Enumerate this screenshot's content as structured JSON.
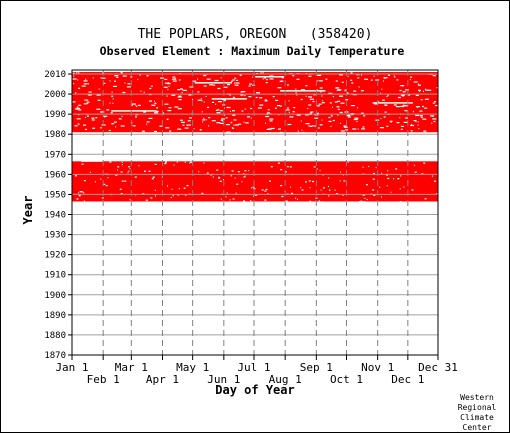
{
  "chart_data": {
    "type": "heatmap",
    "title": "THE POPLARS, OREGON   (358420)",
    "subtitle": "Observed Element : Maximum Daily Temperature",
    "xlabel": "Day of Year",
    "ylabel": "Year",
    "xlim": [
      1,
      365
    ],
    "ylim": [
      1870,
      2012
    ],
    "grid": true,
    "mark_color": "#ff0000",
    "x_ticks_row1": [
      {
        "label": "Jan 1",
        "day": 1
      },
      {
        "label": "Mar 1",
        "day": 60
      },
      {
        "label": "May 1",
        "day": 121
      },
      {
        "label": "Jul 1",
        "day": 182
      },
      {
        "label": "Sep 1",
        "day": 244
      },
      {
        "label": "Nov 1",
        "day": 305
      },
      {
        "label": "Dec 31",
        "day": 365
      }
    ],
    "x_ticks_row2": [
      {
        "label": "Feb 1",
        "day": 32
      },
      {
        "label": "Apr 1",
        "day": 91
      },
      {
        "label": "Jun 1",
        "day": 152
      },
      {
        "label": "Aug 1",
        "day": 213
      },
      {
        "label": "Oct 1",
        "day": 274
      },
      {
        "label": "Dec 1",
        "day": 335
      }
    ],
    "y_ticks": [
      1870,
      1880,
      1890,
      1900,
      1910,
      1920,
      1930,
      1940,
      1950,
      1960,
      1970,
      1980,
      1990,
      2000,
      2010
    ],
    "observed_periods": [
      {
        "start_year": 1946.5,
        "end_year": 1966.5
      },
      {
        "start_year": 1981,
        "end_year": 2011
      }
    ]
  },
  "credit": [
    "Western",
    "Regional",
    "Climate",
    "Center"
  ]
}
